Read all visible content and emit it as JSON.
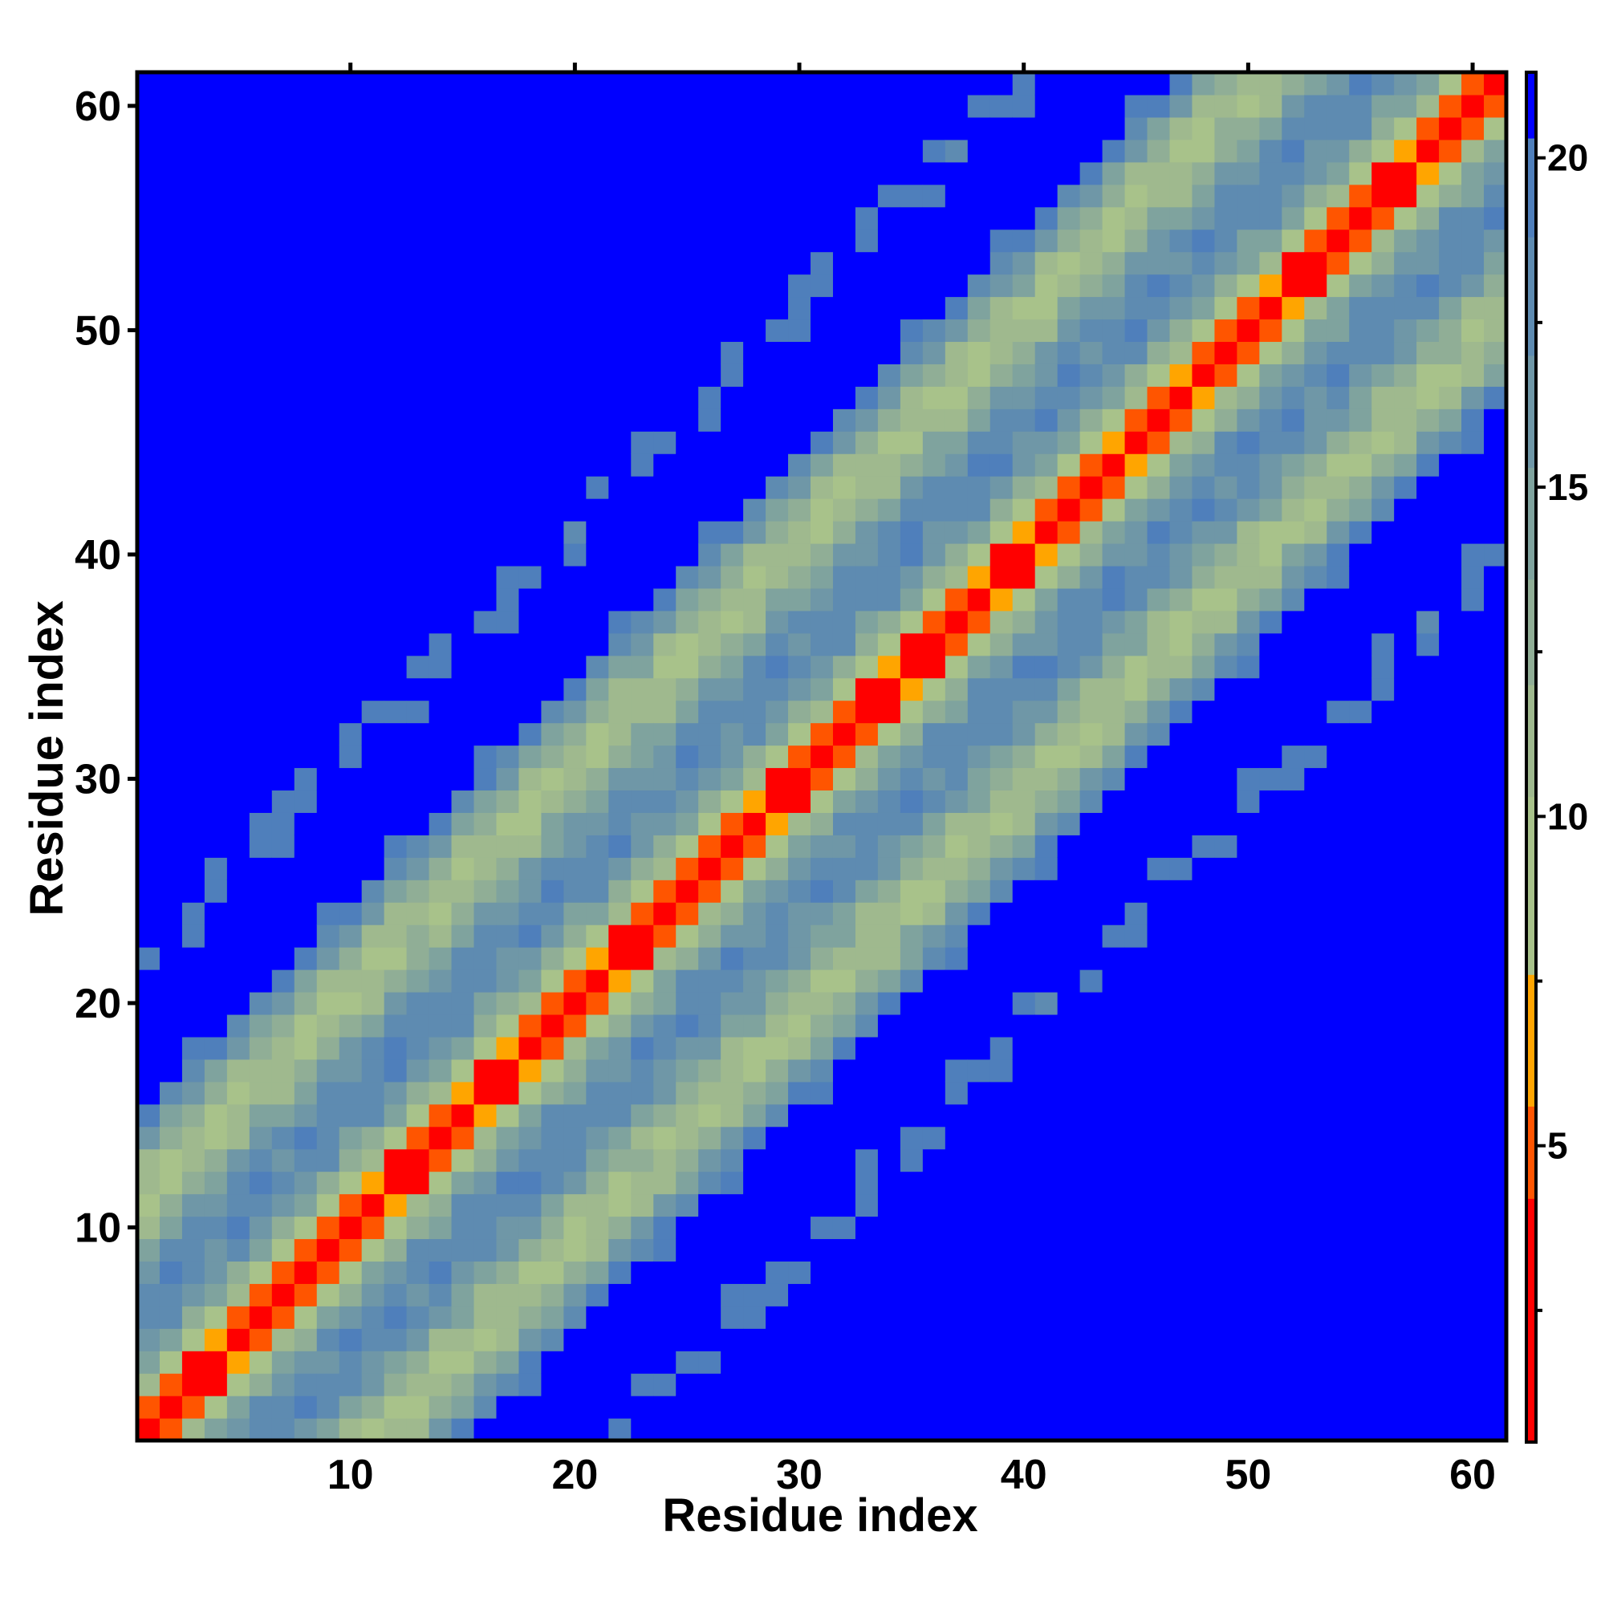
{
  "chart_data": {
    "type": "heatmap",
    "title": "",
    "xlabel": "Residue index",
    "ylabel": "Residue index",
    "xlim": [
      0.5,
      61.5
    ],
    "ylim": [
      0.5,
      61.5
    ],
    "n_residues": 61,
    "x_ticks": [
      "10",
      "20",
      "30",
      "40",
      "50",
      "60"
    ],
    "y_ticks": [
      "10",
      "20",
      "30",
      "40",
      "50",
      "60"
    ],
    "grid": false,
    "value_description": "symmetric pairwise residue distance map; cell (i, j) value for residues i and j",
    "value_range": [
      0.0,
      21.3
    ],
    "distance_model": {
      "rise_per_residue": 3.8,
      "helix_period": 11,
      "helix_amplitude": 17.5,
      "saturation": 21.3
    },
    "colorbar": {
      "position": "right",
      "ticks": [
        "5",
        "10",
        "15",
        "20"
      ],
      "tick_values": [
        5,
        10,
        15,
        20
      ],
      "range": [
        0.5,
        21.3
      ],
      "bins": [
        {
          "max": 4.2,
          "color": "#ff0000"
        },
        {
          "max": 5.6,
          "color": "#ff5500"
        },
        {
          "max": 7.6,
          "color": "#ffa500"
        },
        {
          "max": 10.3,
          "color": "#a8c28a"
        },
        {
          "max": 12.0,
          "color": "#9fb98e"
        },
        {
          "max": 13.6,
          "color": "#90ae96"
        },
        {
          "max": 15.3,
          "color": "#7fa39e"
        },
        {
          "max": 17.0,
          "color": "#6f97a7"
        },
        {
          "max": 18.8,
          "color": "#5e8bb1"
        },
        {
          "max": 20.3,
          "color": "#4f7fbb"
        },
        {
          "max": 99.0,
          "color": "#0000ff"
        }
      ]
    }
  }
}
